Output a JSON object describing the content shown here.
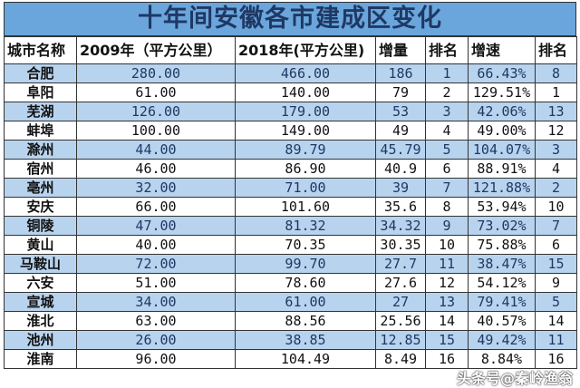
{
  "title": "十年间安徽各市建成区变化",
  "headers": [
    "城市名称",
    "2009年（平方公里）",
    "2018年(平方公里)",
    "增量",
    "排名",
    "增速",
    "排名"
  ],
  "rows": [
    [
      "合肥",
      "280.00",
      "466.00",
      "186",
      "1",
      "66.43%",
      "8"
    ],
    [
      "阜阳",
      "61.00",
      "140.00",
      "79",
      "2",
      "129.51%",
      "1"
    ],
    [
      "芜湖",
      "126.00",
      "179.00",
      "53",
      "3",
      "42.06%",
      "13"
    ],
    [
      "蚌埠",
      "100.00",
      "149.00",
      "49",
      "4",
      "49.00%",
      "12"
    ],
    [
      "滁州",
      "44.00",
      "89.79",
      "45.79",
      "5",
      "104.07%",
      "3"
    ],
    [
      "宿州",
      "46.00",
      "86.90",
      "40.9",
      "6",
      "88.91%",
      "4"
    ],
    [
      "亳州",
      "32.00",
      "71.00",
      "39",
      "7",
      "121.88%",
      "2"
    ],
    [
      "安庆",
      "66.00",
      "101.60",
      "35.6",
      "8",
      "53.94%",
      "10"
    ],
    [
      "铜陵",
      "47.00",
      "81.32",
      "34.32",
      "9",
      "73.02%",
      "7"
    ],
    [
      "黄山",
      "40.00",
      "70.35",
      "30.35",
      "10",
      "75.88%",
      "6"
    ],
    [
      "马鞍山",
      "72.00",
      "99.70",
      "27.7",
      "11",
      "38.47%",
      "15"
    ],
    [
      "六安",
      "51.00",
      "78.60",
      "27.6",
      "12",
      "54.12%",
      "9"
    ],
    [
      "宣城",
      "34.00",
      "61.00",
      "27",
      "13",
      "79.41%",
      "5"
    ],
    [
      "淮北",
      "63.00",
      "88.56",
      "25.56",
      "14",
      "40.57%",
      "14"
    ],
    [
      "池州",
      "26.00",
      "38.85",
      "12.85",
      "15",
      "49.42%",
      "11"
    ],
    [
      "淮南",
      "96.00",
      "104.49",
      "8.49",
      "16",
      "8.84%",
      "16"
    ]
  ],
  "watermark": "头条号@秦岭渔翁",
  "colors": {
    "title_bg": "#6aa6dc",
    "title_text": "#1f3864",
    "alt_row": "#b8d3ee"
  }
}
